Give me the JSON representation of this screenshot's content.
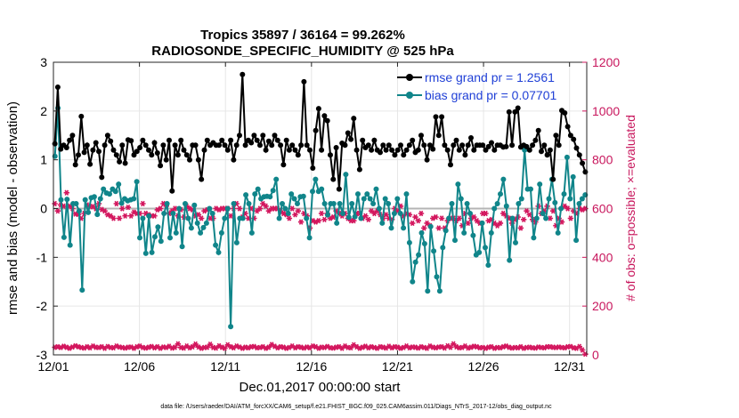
{
  "chart_data": {
    "type": "line",
    "title": "Tropics 35897 / 36164 = 99.262%",
    "subtitle": "RADIOSONDE_SPECIFIC_HUMIDITY @ 525 hPa",
    "xlabel": "Dec.01,2017 00:00:00 start",
    "ylabel": "rmse and bias (model - observation)",
    "ylabel_right": "# of obs: o=possible; ×=evaluated",
    "footnote": "data file: /Users/raeder/DAI/ATM_forcXX/CAM6_setup/f.e21.FHIST_BGC.f09_025.CAM6assim.011/Diags_NTrS_2017-12/obs_diag_output.nc",
    "xlim": [
      0,
      31
    ],
    "ylim": [
      -3,
      3
    ],
    "ylim_right": [
      0,
      1200
    ],
    "x_ticks": [
      0,
      5,
      10,
      15,
      20,
      25,
      30
    ],
    "x_tick_labels": [
      "12/01",
      "12/06",
      "12/11",
      "12/16",
      "12/21",
      "12/26",
      "12/31"
    ],
    "y_ticks": [
      -3,
      -2,
      -1,
      0,
      1,
      2,
      3
    ],
    "y_tick_labels": [
      "-3",
      "-2",
      "-1",
      "0",
      "1",
      "2",
      "3"
    ],
    "y_right_ticks": [
      0,
      200,
      400,
      600,
      800,
      1000,
      1200
    ],
    "y_right_tick_labels": [
      "0",
      "200",
      "400",
      "600",
      "800",
      "1000",
      "1200"
    ],
    "colors": {
      "rmse": "#000000",
      "bias": "#10858a",
      "obs": "#d3175e",
      "zero_line": "#b4b4b4",
      "legend_text": "#1f3fd6"
    },
    "series": [
      {
        "name": "rmse grand pr = 1.2561",
        "axis": "left",
        "values": [
          1.33,
          2.49,
          1.22,
          1.3,
          1.25,
          1.4,
          1.5,
          0.9,
          1.1,
          1.89,
          1.15,
          1.3,
          0.91,
          1.2,
          1.35,
          1.17,
          0.64,
          1.3,
          1.5,
          1.38,
          1.2,
          1.1,
          0.96,
          1.3,
          0.93,
          1.41,
          1.39,
          1.1,
          1.17,
          1.25,
          1.4,
          1.3,
          1.2,
          1.1,
          1.35,
          1.14,
          0.88,
          1.3,
          1.0,
          1.4,
          0.36,
          1.3,
          1.1,
          1.4,
          1.2,
          1.1,
          1.0,
          1.3,
          1.3,
          1.0,
          0.6,
          1.2,
          1.4,
          1.3,
          1.35,
          1.3,
          1.3,
          1.4,
          1.3,
          1.2,
          1.4,
          1.0,
          1.3,
          1.5,
          2.75,
          1.3,
          1.4,
          1.35,
          1.5,
          1.4,
          1.3,
          1.5,
          1.2,
          1.38,
          1.3,
          1.5,
          1.4,
          1.3,
          0.9,
          1.4,
          1.2,
          1.3,
          1.2,
          1.1,
          1.3,
          2.6,
          1.3,
          1.2,
          0.83,
          1.6,
          2.05,
          1.2,
          1.9,
          1.8,
          1.1,
          0.6,
          1.25,
          0.4,
          1.34,
          1.3,
          1.55,
          1.42,
          1.85,
          1.2,
          0.8,
          1.4,
          1.25,
          1.3,
          1.2,
          1.4,
          1.2,
          1.15,
          1.3,
          1.2,
          1.3,
          1.2,
          1.1,
          1.2,
          1.3,
          1.1,
          1.2,
          1.3,
          1.4,
          1.15,
          1.2,
          1.5,
          1.3,
          1.0,
          1.3,
          1.22,
          1.88,
          1.5,
          1.88,
          1.3,
          1.2,
          0.9,
          1.3,
          1.4,
          1.2,
          1.3,
          1.1,
          1.3,
          1.45,
          1.2,
          1.3,
          1.3,
          1.3,
          1.2,
          1.27,
          1.35,
          1.2,
          1.3,
          1.3,
          1.26,
          1.27,
          1.98,
          1.3,
          1.98,
          2.06,
          1.26,
          1.3,
          1.27,
          1.2,
          1.3,
          1.4,
          1.6,
          1.17,
          1.3,
          1.1,
          1.2,
          0.6,
          1.5,
          1.3,
          2.01,
          1.96,
          1.68,
          1.5,
          1.42,
          1.24,
          1.1,
          0.93,
          0.75
        ]
      },
      {
        "name": "bias grand pr = 0.07701",
        "axis": "left",
        "values": [
          1.07,
          2.06,
          0.18,
          -0.59,
          0.19,
          -0.75,
          0.1,
          0.1,
          -0.05,
          -1.67,
          0.18,
          -0.08,
          0.22,
          0.24,
          -0.12,
          0.2,
          0.4,
          0.32,
          0.3,
          0.4,
          0.35,
          0.5,
          0.11,
          0.2,
          0.16,
          0.18,
          0.2,
          0.55,
          -0.6,
          -0.2,
          -0.92,
          -0.15,
          -0.9,
          -0.58,
          -0.38,
          -0.67,
          -0.1,
          0.1,
          -0.6,
          -0.1,
          -0.5,
          0.0,
          -0.78,
          0.1,
          -0.2,
          -0.4,
          0.07,
          -0.3,
          -0.5,
          -0.39,
          -0.3,
          0.0,
          -0.1,
          -0.75,
          -0.9,
          -0.5,
          -0.2,
          0.0,
          -2.42,
          0.1,
          -0.7,
          -0.2,
          -0.2,
          0.28,
          0.1,
          -0.5,
          0.3,
          0.4,
          0.2,
          0.24,
          0.25,
          0.24,
          0.37,
          0.6,
          -0.2,
          0.1,
          0.0,
          -0.1,
          0.3,
          0.2,
          0.1,
          0.24,
          0.25,
          -0.2,
          -0.6,
          0.35,
          0.6,
          0.35,
          0.4,
          0.1,
          -0.13,
          0.1,
          0.1,
          -0.3,
          0.1,
          -0.1,
          0.7,
          -0.18,
          0.1,
          -0.17,
          0.3,
          -0.2,
          0.2,
          0.3,
          0.2,
          0.1,
          0.4,
          0.0,
          -0.3,
          0.2,
          0.1,
          -0.4,
          -0.1,
          0.2,
          -0.1,
          -0.4,
          0.3,
          -0.7,
          -1.5,
          -1.1,
          -0.95,
          -0.5,
          -0.72,
          -1.69,
          -0.37,
          -0.87,
          -1.4,
          -1.69,
          -0.8,
          -0.45,
          -0.2,
          0.1,
          -0.65,
          0.5,
          0.2,
          -0.5,
          0.1,
          -0.1,
          -0.55,
          -0.95,
          -0.9,
          -0.3,
          -0.8,
          -1.16,
          -0.5,
          0.0,
          0.1,
          0.3,
          0.6,
          0.05,
          -1.06,
          -0.2,
          -0.7,
          0.1,
          0.2,
          1.2,
          0.4,
          0.4,
          -0.6,
          -0.2,
          0.5,
          -0.1,
          -0.2,
          0.2,
          0.6,
          0.12,
          -0.5,
          0.0,
          0.3,
          1.05,
          0.2,
          0.65,
          -0.65,
          0.1,
          0.2,
          0.28
        ]
      },
      {
        "name": "# of obs possible",
        "axis": "right",
        "values": [
          31,
          33,
          30,
          35,
          31,
          27,
          32,
          37,
          33,
          30,
          28,
          33,
          29,
          36,
          31,
          30,
          33,
          27,
          34,
          30,
          29,
          36,
          32,
          30,
          28,
          31,
          32,
          27,
          33,
          36,
          30,
          28,
          31,
          34,
          29,
          33,
          27,
          32,
          30,
          35,
          28,
          31,
          45,
          30,
          28,
          36,
          29,
          33,
          44,
          32,
          27,
          30,
          31,
          43,
          30,
          28,
          37,
          31,
          27,
          41,
          33,
          29,
          36,
          32,
          27,
          31,
          29,
          33,
          34,
          29,
          30,
          33,
          27,
          31,
          42,
          35,
          29,
          33,
          31,
          27,
          30,
          36,
          29,
          33,
          31,
          28,
          32,
          29,
          36,
          33,
          27,
          31,
          30,
          34,
          29,
          28,
          31,
          33,
          27,
          36,
          30,
          29,
          41,
          33,
          27,
          31,
          35,
          29,
          33,
          30,
          27,
          33,
          31,
          28,
          35,
          29,
          33,
          31,
          27,
          30,
          36,
          29,
          32,
          31,
          28,
          33,
          30,
          27,
          36,
          31,
          29,
          32,
          33,
          28,
          37,
          31,
          45,
          33,
          29,
          30,
          36,
          28,
          31,
          35,
          33,
          29,
          30,
          27,
          31,
          33,
          27,
          30,
          29,
          33,
          36,
          31,
          28,
          30,
          29,
          33,
          27,
          30,
          31,
          29,
          28,
          32,
          30,
          29,
          33,
          33,
          31,
          30,
          32,
          30,
          29,
          33,
          34,
          29,
          27,
          34,
          20,
          3
        ]
      },
      {
        "name": "# of obs evaluated",
        "axis": "right",
        "values": [
          620,
          590,
          615,
          610,
          665,
          610,
          600,
          578,
          576,
          560,
          580,
          615,
          608,
          608,
          600,
          620,
          596,
          590,
          575,
          570,
          560,
          620,
          560,
          600,
          570,
          605,
          570,
          585,
          580,
          580,
          620,
          580,
          575,
          570,
          570,
          595,
          600,
          620,
          610,
          580,
          590,
          600,
          570,
          595,
          565,
          610,
          600,
          595,
          570,
          575,
          560,
          590,
          595,
          560,
          560,
          600,
          595,
          600,
          600,
          600,
          570,
          600,
          620,
          600,
          565,
          580,
          560,
          600,
          560,
          590,
          600,
          620,
          610,
          590,
          600,
          600,
          600,
          590,
          580,
          575,
          560,
          600,
          575,
          590,
          545,
          580,
          570,
          520,
          550,
          545,
          550,
          580,
          555,
          580,
          560,
          565,
          590,
          580,
          570,
          580,
          560,
          550,
          550,
          580,
          580,
          560,
          570,
          555,
          590,
          580,
          590,
          575,
          560,
          575,
          560,
          555,
          600,
          590,
          610,
          570,
          580,
          575,
          540,
          565,
          550,
          580,
          520,
          540,
          530,
          560,
          565,
          520,
          560,
          520,
          550,
          560,
          560,
          550,
          560,
          530,
          580,
          540,
          560,
          565,
          550,
          540,
          580,
          580,
          550,
          555,
          540,
          530,
          540,
          580,
          570,
          560,
          540,
          555,
          565,
          520,
          555,
          590,
          575,
          555,
          545,
          610,
          580,
          590,
          610,
          560,
          590,
          530,
          560,
          545,
          610,
          600,
          560,
          590,
          580,
          600,
          595,
          600
        ]
      }
    ]
  }
}
